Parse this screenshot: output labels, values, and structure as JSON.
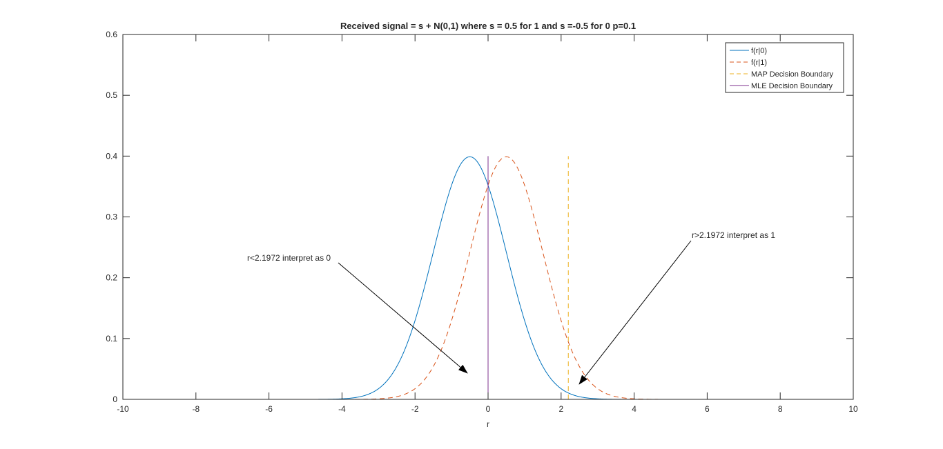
{
  "colors": {
    "f_r0": "#0072BD",
    "f_r1": "#D95319",
    "map": "#EDB120",
    "mle": "#7E2F8E",
    "axis": "#262626",
    "background": "#ffffff"
  },
  "chart_data": {
    "type": "line",
    "title": "Received signal = s + N(0,1) where s = 0.5 for 1 and s =-0.5 for 0 p=0.1",
    "xlabel": "r",
    "ylabel": "",
    "xlim": [
      -10,
      10
    ],
    "ylim": [
      0,
      0.6
    ],
    "xticks": [
      -10,
      -8,
      -6,
      -4,
      -2,
      0,
      2,
      4,
      6,
      8,
      10
    ],
    "yticks": [
      0,
      0.1,
      0.2,
      0.3,
      0.4,
      0.5,
      0.6
    ],
    "grid": false,
    "legend_position": "top-right",
    "series": [
      {
        "name": "f(r|0)",
        "kind": "gaussian",
        "mean": -0.5,
        "std": 1,
        "style": "solid",
        "color_key": "f_r0"
      },
      {
        "name": "f(r|1)",
        "kind": "gaussian",
        "mean": 0.5,
        "std": 1,
        "style": "dashed",
        "color_key": "f_r1"
      },
      {
        "name": "MAP Decision Boundary",
        "kind": "vline",
        "x": 2.1972,
        "y_range": [
          0,
          0.4
        ],
        "style": "dashed",
        "color_key": "map"
      },
      {
        "name": "MLE Decision Boundary",
        "kind": "vline",
        "x": 0,
        "y_range": [
          0,
          0.4
        ],
        "style": "solid",
        "color_key": "mle"
      }
    ],
    "annotations": [
      {
        "text": "r<2.1972 interpret as 0"
      },
      {
        "text": "r>2.1972 interpret as 1"
      }
    ]
  }
}
